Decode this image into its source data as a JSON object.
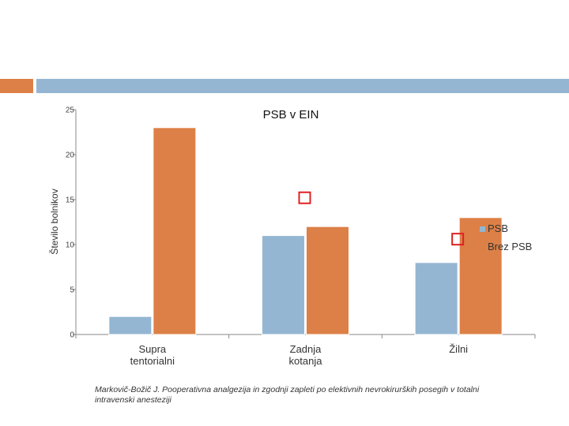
{
  "colors": {
    "psb": "#94b6d2",
    "brez_psb": "#dd8047",
    "accent_left": "#dd8047",
    "accent_right": "#94b6d2",
    "marker": "#e02020"
  },
  "caption": "Markovič-Božič J. Pooperativna analgezija in zgodnji zapleti po elektivnih nevrokirurških posegih v totalni intravenski anesteziji",
  "chart_data": {
    "type": "bar",
    "title": "PSB v EIN",
    "ylabel": "Število bolnikov",
    "xlabel": "",
    "ylim": [
      0,
      25
    ],
    "yticks": [
      0,
      5,
      10,
      15,
      20,
      25
    ],
    "categories": [
      [
        "Supra",
        "tentorialni"
      ],
      [
        "Zadnja",
        "kotanja"
      ],
      [
        "Žilni"
      ]
    ],
    "series": [
      {
        "name": "PSB",
        "color": "#94b6d2",
        "values": [
          2,
          11,
          8
        ]
      },
      {
        "name": "Brez PSB",
        "color": "#dd8047",
        "values": [
          23,
          12,
          13
        ]
      }
    ],
    "legend": "right",
    "grid": false,
    "annotations": [
      {
        "type": "square-marker",
        "category": 1,
        "value": 15.2
      },
      {
        "type": "square-marker",
        "category": 2,
        "value": 10.6
      }
    ]
  }
}
